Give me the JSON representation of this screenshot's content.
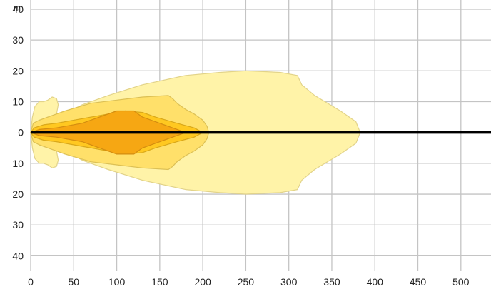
{
  "chart_data": {
    "type": "area",
    "title": "",
    "xlabel": "",
    "ylabel": "m",
    "xlim": [
      0,
      535
    ],
    "ylim": [
      -45,
      43
    ],
    "x_ticks": [
      "0",
      "50",
      "100",
      "150",
      "200",
      "250",
      "300",
      "350",
      "400",
      "450",
      "500"
    ],
    "y_ticks": [
      {
        "v": 40,
        "label": "40"
      },
      {
        "v": 30,
        "label": "30"
      },
      {
        "v": 20,
        "label": "20"
      },
      {
        "v": 10,
        "label": "10"
      },
      {
        "v": 0,
        "label": "0"
      },
      {
        "v": -10,
        "label": "10"
      },
      {
        "v": -20,
        "label": "20"
      },
      {
        "v": -30,
        "label": "30"
      },
      {
        "v": -40,
        "label": "40"
      }
    ],
    "grid": true,
    "axis_line": {
      "y": 0,
      "color": "#000000"
    },
    "series": [
      {
        "color": "#fff3a8",
        "outline": "#e2d38a",
        "points": [
          [
            0,
            0
          ],
          [
            2,
            5
          ],
          [
            5,
            8.5
          ],
          [
            10,
            10
          ],
          [
            15,
            10
          ],
          [
            20,
            10.5
          ],
          [
            25,
            11.5
          ],
          [
            30,
            11
          ],
          [
            32,
            9
          ],
          [
            30,
            6
          ],
          [
            40,
            6
          ],
          [
            60,
            9
          ],
          [
            90,
            12
          ],
          [
            130,
            15.5
          ],
          [
            180,
            18.5
          ],
          [
            220,
            19.5
          ],
          [
            250,
            20
          ],
          [
            290,
            19.5
          ],
          [
            310,
            18.5
          ],
          [
            315,
            15.5
          ],
          [
            330,
            12
          ],
          [
            360,
            7
          ],
          [
            378,
            3.5
          ],
          [
            383,
            0
          ],
          [
            378,
            -3.5
          ],
          [
            360,
            -7
          ],
          [
            330,
            -12
          ],
          [
            315,
            -15.5
          ],
          [
            310,
            -18.5
          ],
          [
            290,
            -19.5
          ],
          [
            250,
            -20
          ],
          [
            220,
            -19.5
          ],
          [
            180,
            -18.5
          ],
          [
            130,
            -15.5
          ],
          [
            90,
            -12
          ],
          [
            60,
            -9
          ],
          [
            40,
            -6
          ],
          [
            30,
            -6
          ],
          [
            32,
            -9
          ],
          [
            30,
            -11
          ],
          [
            25,
            -11.5
          ],
          [
            20,
            -10.5
          ],
          [
            15,
            -10
          ],
          [
            10,
            -10
          ],
          [
            5,
            -8.5
          ],
          [
            2,
            -5
          ]
        ]
      },
      {
        "color": "#ffe06a",
        "outline": "#dcc055",
        "points": [
          [
            0,
            0
          ],
          [
            3,
            3
          ],
          [
            10,
            4
          ],
          [
            20,
            5
          ],
          [
            40,
            7
          ],
          [
            70,
            9.5
          ],
          [
            100,
            10.5
          ],
          [
            130,
            11.5
          ],
          [
            160,
            12
          ],
          [
            165,
            11
          ],
          [
            170,
            9.5
          ],
          [
            180,
            7.5
          ],
          [
            190,
            6
          ],
          [
            200,
            4
          ],
          [
            205,
            2
          ],
          [
            207,
            0
          ],
          [
            205,
            -2
          ],
          [
            200,
            -4
          ],
          [
            190,
            -6
          ],
          [
            180,
            -7.5
          ],
          [
            170,
            -9.5
          ],
          [
            165,
            -11
          ],
          [
            160,
            -12
          ],
          [
            130,
            -11.5
          ],
          [
            100,
            -10.5
          ],
          [
            70,
            -9.5
          ],
          [
            40,
            -7
          ],
          [
            20,
            -5
          ],
          [
            10,
            -4
          ],
          [
            3,
            -3
          ]
        ]
      },
      {
        "color": "#ffc820",
        "outline": "#d9a81a",
        "points": [
          [
            0,
            0
          ],
          [
            4,
            1.5
          ],
          [
            15,
            2.5
          ],
          [
            30,
            3
          ],
          [
            60,
            4.5
          ],
          [
            90,
            6
          ],
          [
            110,
            7
          ],
          [
            130,
            6.5
          ],
          [
            145,
            5
          ],
          [
            170,
            3
          ],
          [
            190,
            1.5
          ],
          [
            200,
            0
          ],
          [
            190,
            -1.5
          ],
          [
            170,
            -3
          ],
          [
            145,
            -5
          ],
          [
            130,
            -6.5
          ],
          [
            110,
            -7
          ],
          [
            90,
            -6
          ],
          [
            60,
            -4.5
          ],
          [
            30,
            -3
          ],
          [
            15,
            -2.5
          ],
          [
            4,
            -1.5
          ]
        ]
      },
      {
        "color": "#f6a713",
        "outline": "#d48d10",
        "points": [
          [
            0,
            0
          ],
          [
            10,
            1
          ],
          [
            30,
            1.5
          ],
          [
            60,
            3
          ],
          [
            80,
            5
          ],
          [
            100,
            7
          ],
          [
            120,
            7
          ],
          [
            130,
            5
          ],
          [
            145,
            3.5
          ],
          [
            165,
            1.5
          ],
          [
            180,
            0
          ],
          [
            165,
            -1.5
          ],
          [
            145,
            -3.5
          ],
          [
            130,
            -5
          ],
          [
            120,
            -7
          ],
          [
            100,
            -7
          ],
          [
            80,
            -5
          ],
          [
            60,
            -3
          ],
          [
            30,
            -1.5
          ],
          [
            10,
            -1
          ]
        ]
      }
    ]
  }
}
